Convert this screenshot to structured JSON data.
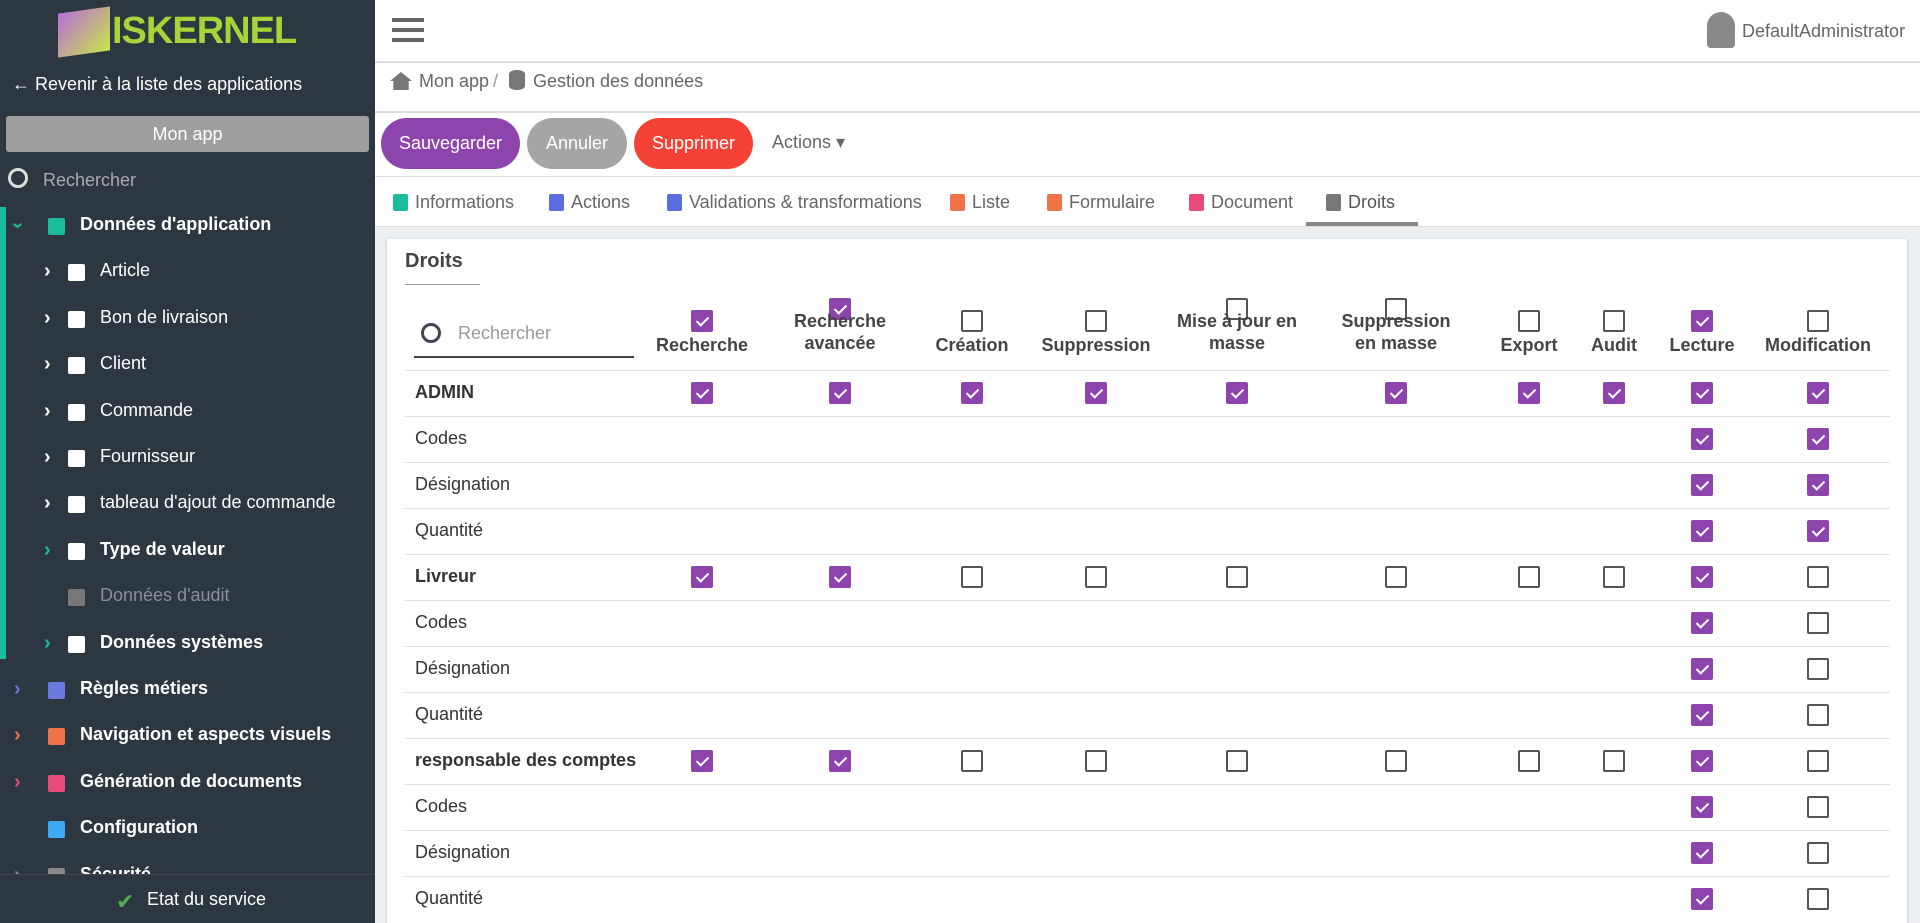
{
  "header": {
    "logo": "ISKERNEL",
    "user": "DefaultAdministrator"
  },
  "sidebar": {
    "back": "Revenir à la liste des applications",
    "app": "Mon app",
    "search_placeholder": "Rechercher",
    "footer": "Etat du service",
    "items": [
      {
        "label": "Données d'application",
        "level": 0,
        "bold": true,
        "expanded": true,
        "color": "#1abc9c"
      },
      {
        "label": "Article",
        "level": 1,
        "bold": false,
        "color": "#ffffff"
      },
      {
        "label": "Bon de livraison",
        "level": 1,
        "bold": false,
        "color": "#ffffff"
      },
      {
        "label": "Client",
        "level": 1,
        "bold": false,
        "color": "#ffffff"
      },
      {
        "label": "Commande",
        "level": 1,
        "bold": false,
        "color": "#ffffff"
      },
      {
        "label": "Fournisseur",
        "level": 1,
        "bold": false,
        "color": "#ffffff"
      },
      {
        "label": "tableau d'ajout de commande",
        "level": 1,
        "bold": false,
        "color": "#ffffff"
      },
      {
        "label": "Type de valeur",
        "level": 1,
        "bold": true,
        "color": "#1abc9c"
      },
      {
        "label": "Données d'audit",
        "level": 1,
        "bold": false,
        "muted": true,
        "color": null
      },
      {
        "label": "Données systèmes",
        "level": 1,
        "bold": true,
        "color": "#1abc9c"
      },
      {
        "label": "Règles métiers",
        "level": 0,
        "bold": true,
        "color": "#6c7ae0"
      },
      {
        "label": "Navigation et aspects visuels",
        "level": 0,
        "bold": true,
        "color": "#f0734a"
      },
      {
        "label": "Génération de documents",
        "level": 0,
        "bold": true,
        "color": "#e84a7a"
      },
      {
        "label": "Configuration",
        "level": 0,
        "bold": true,
        "color": null
      },
      {
        "label": "Sécurité",
        "level": 0,
        "bold": true,
        "color": "#888888"
      }
    ]
  },
  "breadcrumb": [
    "Mon app",
    "Gestion des données"
  ],
  "buttons": [
    {
      "label": "Sauvegarder",
      "color": "#8e44ad"
    },
    {
      "label": "Annuler",
      "color": "#a5a5a5"
    },
    {
      "label": "Supprimer",
      "color": "#f44336"
    }
  ],
  "actions": "Actions",
  "tabs": [
    {
      "label": "Informations",
      "color": "#1abc9c"
    },
    {
      "label": "Actions",
      "color": "#5b6ee1"
    },
    {
      "label": "Validations & transformations",
      "color": "#5b6ee1"
    },
    {
      "label": "Liste",
      "color": "#f0734a"
    },
    {
      "label": "Formulaire",
      "color": "#f0734a"
    },
    {
      "label": "Document",
      "color": "#e84a7a"
    },
    {
      "label": "Droits",
      "color": "#777777",
      "active": true
    }
  ],
  "panel": {
    "title": "Droits",
    "search_placeholder": "Rechercher",
    "columns": [
      {
        "label": "Recherche",
        "checked": true
      },
      {
        "label": "Recherche avancée",
        "checked": true
      },
      {
        "label": "Création",
        "checked": false
      },
      {
        "label": "Suppression",
        "checked": false
      },
      {
        "label": "Mise à jour en masse",
        "checked": false
      },
      {
        "label": "Suppression en masse",
        "checked": false
      },
      {
        "label": "Export",
        "checked": false
      },
      {
        "label": "Audit",
        "checked": false
      },
      {
        "label": "Lecture",
        "checked": true
      },
      {
        "label": "Modification",
        "checked": false
      }
    ],
    "rows": [
      {
        "label": "ADMIN",
        "bold": true,
        "checks": [
          true,
          true,
          true,
          true,
          true,
          true,
          true,
          true,
          true,
          true
        ]
      },
      {
        "label": "Codes",
        "bold": false,
        "checks": [
          null,
          null,
          null,
          null,
          null,
          null,
          null,
          null,
          true,
          true
        ]
      },
      {
        "label": "Désignation",
        "bold": false,
        "checks": [
          null,
          null,
          null,
          null,
          null,
          null,
          null,
          null,
          true,
          true
        ]
      },
      {
        "label": "Quantité",
        "bold": false,
        "checks": [
          null,
          null,
          null,
          null,
          null,
          null,
          null,
          null,
          true,
          true
        ]
      },
      {
        "label": "Livreur",
        "bold": true,
        "checks": [
          true,
          true,
          false,
          false,
          false,
          false,
          false,
          false,
          true,
          false
        ]
      },
      {
        "label": "Codes",
        "bold": false,
        "checks": [
          null,
          null,
          null,
          null,
          null,
          null,
          null,
          null,
          true,
          false
        ]
      },
      {
        "label": "Désignation",
        "bold": false,
        "checks": [
          null,
          null,
          null,
          null,
          null,
          null,
          null,
          null,
          true,
          false
        ]
      },
      {
        "label": "Quantité",
        "bold": false,
        "checks": [
          null,
          null,
          null,
          null,
          null,
          null,
          null,
          null,
          true,
          false
        ]
      },
      {
        "label": "responsable des comptes",
        "bold": true,
        "checks": [
          true,
          true,
          false,
          false,
          false,
          false,
          false,
          false,
          true,
          false
        ]
      },
      {
        "label": "Codes",
        "bold": false,
        "checks": [
          null,
          null,
          null,
          null,
          null,
          null,
          null,
          null,
          true,
          false
        ]
      },
      {
        "label": "Désignation",
        "bold": false,
        "checks": [
          null,
          null,
          null,
          null,
          null,
          null,
          null,
          null,
          true,
          false
        ]
      },
      {
        "label": "Quantité",
        "bold": false,
        "checks": [
          null,
          null,
          null,
          null,
          null,
          null,
          null,
          null,
          true,
          false
        ]
      }
    ]
  }
}
